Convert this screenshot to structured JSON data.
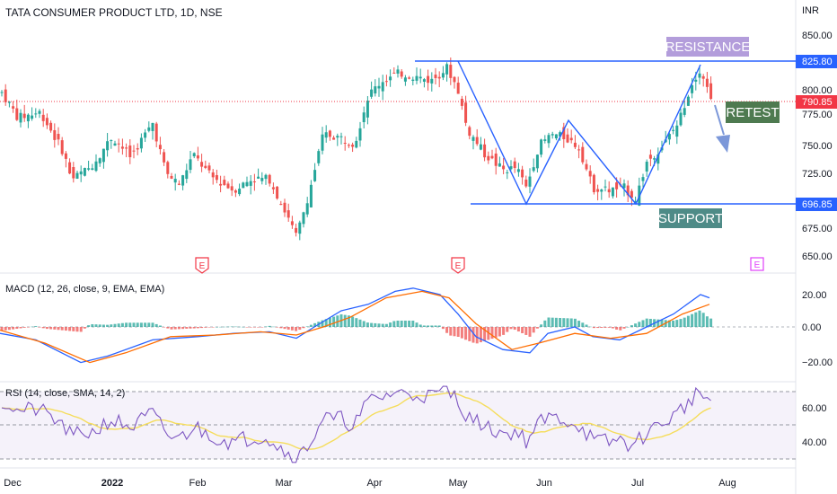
{
  "chart_data": [
    {
      "type": "candlestick",
      "title": "TATA CONSUMER PRODUCT LTD, 1D, NSE",
      "currency": "INR",
      "y_ticks": [
        "850.00",
        "825.00",
        "800.00",
        "775.00",
        "750.00",
        "725.00",
        "700.00",
        "675.00",
        "650.00"
      ],
      "ylim": [
        640,
        862
      ],
      "x_ticks": [
        "Dec",
        "2022",
        "Feb",
        "Mar",
        "Apr",
        "May",
        "Jun",
        "Jul",
        "Aug"
      ],
      "price_labels": {
        "resistance": "825.80",
        "last": "790.85",
        "support": "696.85"
      },
      "annotations": {
        "resistance": "RESISTANCE",
        "retest": "RETEST",
        "support": "SUPPORT"
      },
      "earnings_markers": [
        "E",
        "E",
        "E"
      ],
      "resistance_level": 825.8,
      "support_level": 696.85,
      "last_close": 790.85,
      "pattern_path": [
        [
          "May",
          825
        ],
        [
          "late May",
          697
        ],
        [
          "early Jun",
          760
        ],
        [
          "mid Jun",
          770
        ],
        [
          "late Jun",
          697
        ],
        [
          "mid Jul",
          825
        ]
      ]
    },
    {
      "type": "line",
      "title": "MACD (12, 26, close, 9, EMA, EMA)",
      "y_ticks": [
        "20.00",
        "0.00",
        "−20.00"
      ],
      "ylim": [
        -27,
        27
      ]
    },
    {
      "type": "line",
      "title": "RSI (14, close, SMA, 14, 2)",
      "y_ticks": [
        "60.00",
        "40.00"
      ],
      "ylim": [
        25,
        78
      ],
      "bands": [
        30,
        50,
        70
      ]
    }
  ],
  "colors": {
    "up": "#26a69a",
    "down": "#ef5350",
    "line_blue": "#2962ff",
    "macd_signal": "#ff6d00",
    "rsi_line": "#7e57c2",
    "rsi_ma": "#f5dd5c",
    "resistance_box": "#b39ddb",
    "retest_box": "#4e7a50",
    "support_box": "#4e8b87",
    "last_price": "#f23645"
  }
}
